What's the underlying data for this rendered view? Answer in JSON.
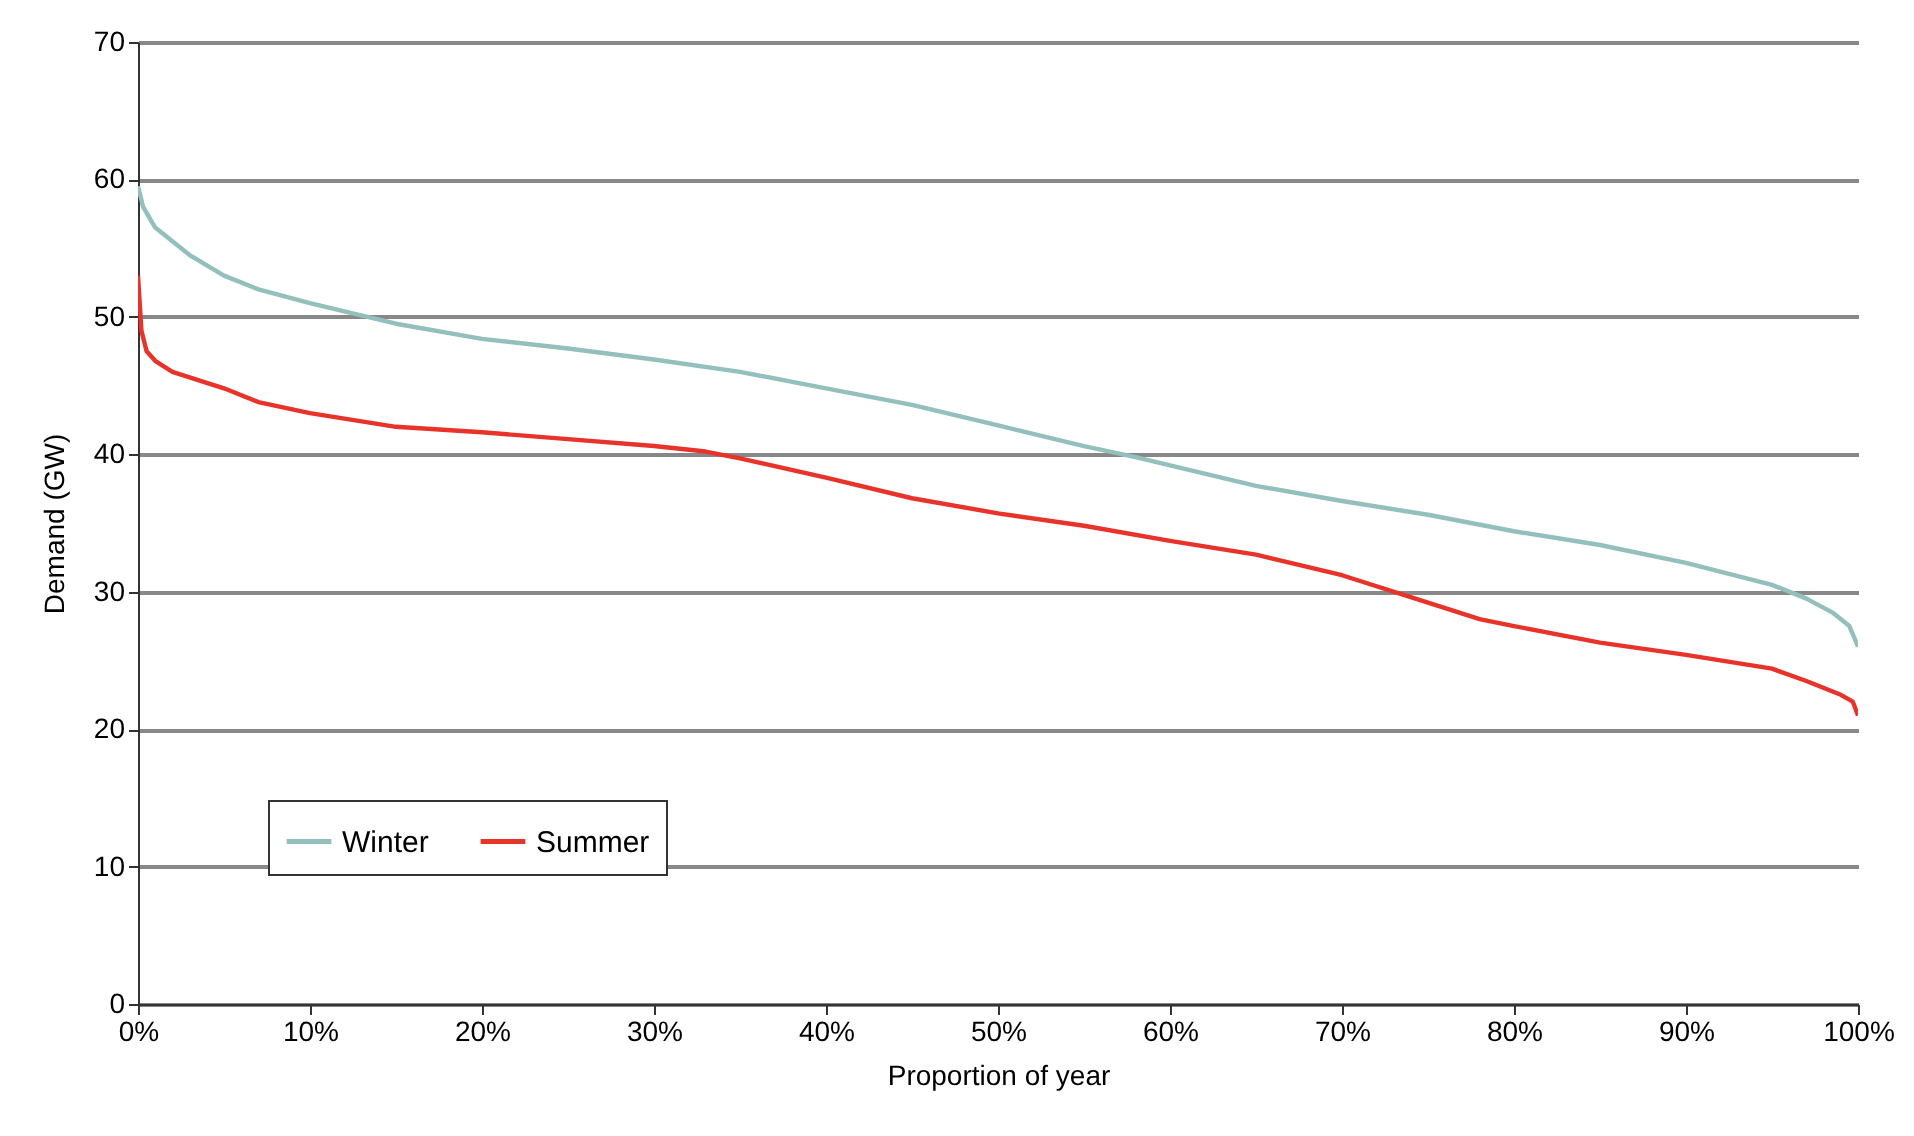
{
  "chart_data": {
    "type": "line",
    "xlabel": "Proportion of year",
    "ylabel": "Demand (GW)",
    "xlim": [
      0,
      100
    ],
    "ylim": [
      0,
      70
    ],
    "xticks": [
      {
        "value": 0,
        "label": "0%"
      },
      {
        "value": 10,
        "label": "10%"
      },
      {
        "value": 20,
        "label": "20%"
      },
      {
        "value": 30,
        "label": "30%"
      },
      {
        "value": 40,
        "label": "40%"
      },
      {
        "value": 50,
        "label": "50%"
      },
      {
        "value": 60,
        "label": "60%"
      },
      {
        "value": 70,
        "label": "70%"
      },
      {
        "value": 80,
        "label": "80%"
      },
      {
        "value": 90,
        "label": "90%"
      },
      {
        "value": 100,
        "label": "100%"
      }
    ],
    "yticks": [
      0,
      10,
      20,
      30,
      40,
      50,
      60,
      70
    ],
    "grid": "y",
    "legend": "bottom left",
    "line_style": "solid",
    "marker": "none",
    "series": [
      {
        "name": "Winter",
        "color": "#93bfbd",
        "x": [
          0,
          0.3,
          1,
          2,
          3,
          5,
          7,
          10,
          12,
          15,
          20,
          25,
          30,
          35,
          40,
          45,
          50,
          55,
          58,
          60,
          65,
          70,
          75,
          80,
          85,
          90,
          95,
          97,
          98.5,
          99.5,
          100
        ],
        "values": [
          59.5,
          58,
          56.5,
          55.5,
          54.5,
          53,
          52,
          51,
          50.4,
          49.5,
          48.4,
          47.7,
          46.9,
          46,
          44.8,
          43.6,
          42.1,
          40.6,
          39.8,
          39.2,
          37.7,
          36.6,
          35.6,
          34.4,
          33.4,
          32.1,
          30.5,
          29.5,
          28.5,
          27.5,
          26
        ]
      },
      {
        "name": "Summer",
        "color": "#e8332a",
        "x": [
          0,
          0.2,
          0.5,
          1,
          2,
          5,
          7,
          10,
          15,
          20,
          25,
          30,
          33,
          35,
          40,
          45,
          50,
          55,
          60,
          65,
          70,
          75,
          78,
          80,
          85,
          90,
          95,
          97,
          99,
          99.7,
          100
        ],
        "values": [
          53,
          49,
          47.5,
          46.8,
          46,
          44.8,
          43.8,
          43,
          42,
          41.6,
          41.1,
          40.6,
          40.2,
          39.7,
          38.3,
          36.8,
          35.7,
          34.8,
          33.7,
          32.7,
          31.2,
          29.2,
          28,
          27.5,
          26.3,
          25.4,
          24.4,
          23.5,
          22.5,
          22,
          21
        ]
      }
    ]
  }
}
